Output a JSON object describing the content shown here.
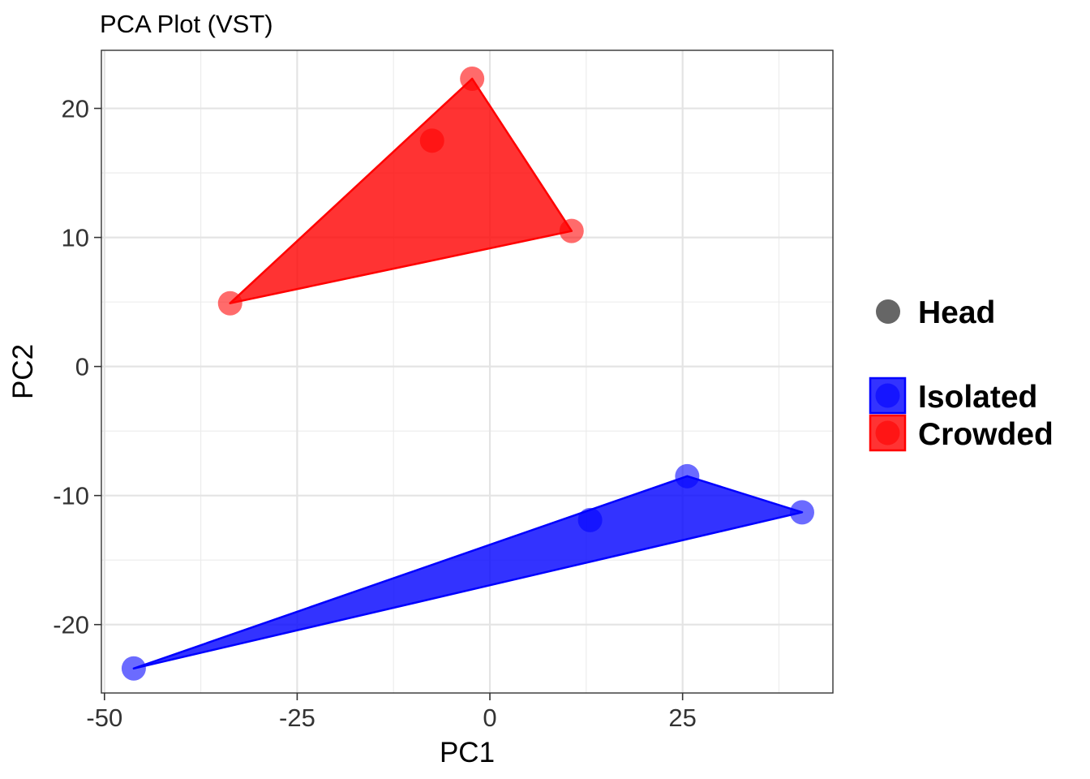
{
  "chart_data": {
    "type": "scatter",
    "title": "PCA Plot (VST)",
    "xlabel": "PC1",
    "ylabel": "PC2",
    "xlim": [
      -50.4,
      44.5
    ],
    "ylim": [
      -25.3,
      24.5
    ],
    "x_ticks": [
      -50,
      -25,
      0,
      25
    ],
    "x_tick_labels": [
      "-50",
      "-25",
      "0",
      "25"
    ],
    "y_ticks": [
      -20,
      -10,
      0,
      10,
      20
    ],
    "y_tick_labels": [
      "-20",
      "-10",
      "0",
      "10",
      "20"
    ],
    "grid": true,
    "legend_position": "right",
    "shape_legend": {
      "label": "Head"
    },
    "series": [
      {
        "name": "Isolated",
        "color": "#0000FF",
        "points": [
          {
            "x": -46.2,
            "y": -23.4
          },
          {
            "x": 13.0,
            "y": -11.9
          },
          {
            "x": 25.6,
            "y": -8.5
          },
          {
            "x": 40.5,
            "y": -11.3
          }
        ],
        "hull": [
          {
            "x": -46.2,
            "y": -23.4
          },
          {
            "x": 25.6,
            "y": -8.5
          },
          {
            "x": 40.5,
            "y": -11.3
          }
        ]
      },
      {
        "name": "Crowded",
        "color": "#FF0000",
        "points": [
          {
            "x": -33.7,
            "y": 4.9
          },
          {
            "x": -7.5,
            "y": 17.5
          },
          {
            "x": -2.3,
            "y": 22.3
          },
          {
            "x": 10.6,
            "y": 10.5
          }
        ],
        "hull": [
          {
            "x": -33.7,
            "y": 4.9
          },
          {
            "x": -2.3,
            "y": 22.3
          },
          {
            "x": 10.6,
            "y": 10.5
          }
        ]
      }
    ]
  }
}
